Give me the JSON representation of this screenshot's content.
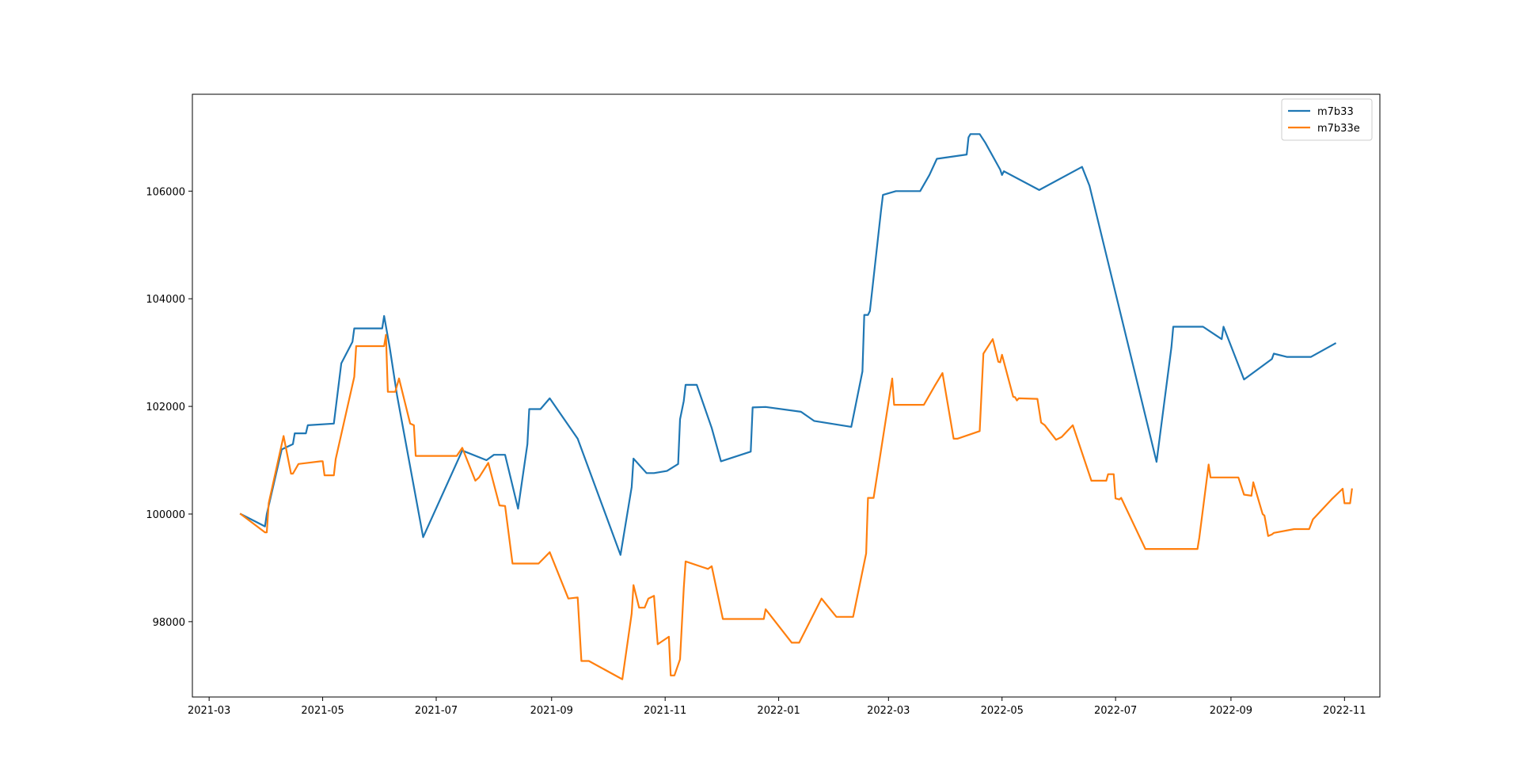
{
  "chart_data": {
    "type": "line",
    "title": "",
    "xlabel": "",
    "ylabel": "",
    "x_ticks": [
      "2021-03",
      "2021-05",
      "2021-07",
      "2021-09",
      "2021-11",
      "2022-01",
      "2022-03",
      "2022-05",
      "2022-07",
      "2022-09",
      "2022-11"
    ],
    "y_ticks": [
      98000,
      100000,
      102000,
      104000,
      106000
    ],
    "xlim": [
      "2021-02-20",
      "2022-11-20"
    ],
    "ylim": [
      96600,
      107800
    ],
    "grid": false,
    "legend_position": "top-right",
    "series": [
      {
        "name": "m7b33",
        "color": "#1f77b4",
        "points": [
          [
            "2021-03-18",
            100000
          ],
          [
            "2021-03-31",
            99770
          ],
          [
            "2021-04-01",
            100000
          ],
          [
            "2021-04-09",
            101200
          ],
          [
            "2021-04-15",
            101300
          ],
          [
            "2021-04-16",
            101500
          ],
          [
            "2021-04-22",
            101500
          ],
          [
            "2021-04-23",
            101650
          ],
          [
            "2021-05-07",
            101680
          ],
          [
            "2021-05-11",
            102800
          ],
          [
            "2021-05-17",
            103200
          ],
          [
            "2021-05-18",
            103450
          ],
          [
            "2021-06-02",
            103450
          ],
          [
            "2021-06-03",
            103680
          ],
          [
            "2021-06-06",
            103100
          ],
          [
            "2021-06-10",
            102200
          ],
          [
            "2021-06-24",
            99570
          ],
          [
            "2021-07-15",
            101180
          ],
          [
            "2021-07-28",
            101000
          ],
          [
            "2021-08-01",
            101100
          ],
          [
            "2021-08-07",
            101100
          ],
          [
            "2021-08-14",
            100100
          ],
          [
            "2021-08-19",
            101300
          ],
          [
            "2021-08-20",
            101950
          ],
          [
            "2021-08-26",
            101950
          ],
          [
            "2021-08-31",
            102150
          ],
          [
            "2021-09-15",
            101400
          ],
          [
            "2021-10-08",
            99240
          ],
          [
            "2021-10-14",
            100500
          ],
          [
            "2021-10-15",
            101030
          ],
          [
            "2021-10-22",
            100760
          ],
          [
            "2021-10-26",
            100760
          ],
          [
            "2021-11-02",
            100800
          ],
          [
            "2021-11-08",
            100930
          ],
          [
            "2021-11-09",
            101760
          ],
          [
            "2021-11-11",
            102100
          ],
          [
            "2021-11-12",
            102400
          ],
          [
            "2021-11-18",
            102400
          ],
          [
            "2021-11-26",
            101600
          ],
          [
            "2021-12-01",
            100980
          ],
          [
            "2021-12-17",
            101160
          ],
          [
            "2021-12-18",
            101980
          ],
          [
            "2021-12-25",
            101990
          ],
          [
            "2022-01-13",
            101900
          ],
          [
            "2022-01-20",
            101730
          ],
          [
            "2022-02-09",
            101620
          ],
          [
            "2022-02-15",
            102650
          ],
          [
            "2022-02-16",
            103700
          ],
          [
            "2022-02-18",
            103700
          ],
          [
            "2022-02-19",
            103770
          ],
          [
            "2022-02-25",
            105640
          ],
          [
            "2022-02-26",
            105930
          ],
          [
            "2022-03-05",
            106000
          ],
          [
            "2022-03-18",
            106000
          ],
          [
            "2022-03-23",
            106300
          ],
          [
            "2022-03-27",
            106600
          ],
          [
            "2022-04-12",
            106680
          ],
          [
            "2022-04-13",
            107000
          ],
          [
            "2022-04-14",
            107060
          ],
          [
            "2022-04-19",
            107060
          ],
          [
            "2022-04-22",
            106900
          ],
          [
            "2022-04-30",
            106400
          ],
          [
            "2022-05-01",
            106300
          ],
          [
            "2022-05-02",
            106370
          ],
          [
            "2022-05-21",
            106020
          ],
          [
            "2022-06-13",
            106450
          ],
          [
            "2022-06-17",
            106100
          ],
          [
            "2022-07-23",
            100970
          ],
          [
            "2022-07-31",
            103100
          ],
          [
            "2022-08-01",
            103480
          ],
          [
            "2022-08-17",
            103480
          ],
          [
            "2022-08-27",
            103250
          ],
          [
            "2022-08-28",
            103480
          ],
          [
            "2022-09-08",
            102500
          ],
          [
            "2022-09-23",
            102880
          ],
          [
            "2022-09-24",
            102980
          ],
          [
            "2022-10-01",
            102920
          ],
          [
            "2022-10-14",
            102920
          ],
          [
            "2022-10-27",
            103170
          ]
        ]
      },
      {
        "name": "m7b33e",
        "color": "#ff7f0e",
        "points": [
          [
            "2021-03-18",
            100000
          ],
          [
            "2021-03-31",
            99660
          ],
          [
            "2021-04-01",
            99660
          ],
          [
            "2021-04-02",
            100200
          ],
          [
            "2021-04-10",
            101450
          ],
          [
            "2021-04-14",
            100750
          ],
          [
            "2021-04-15",
            100750
          ],
          [
            "2021-04-18",
            100930
          ],
          [
            "2021-04-30",
            100980
          ],
          [
            "2021-05-01",
            100980
          ],
          [
            "2021-05-02",
            100720
          ],
          [
            "2021-05-07",
            100720
          ],
          [
            "2021-05-08",
            101020
          ],
          [
            "2021-05-18",
            102550
          ],
          [
            "2021-05-19",
            103120
          ],
          [
            "2021-06-03",
            103120
          ],
          [
            "2021-06-04",
            103330
          ],
          [
            "2021-06-05",
            102270
          ],
          [
            "2021-06-09",
            102270
          ],
          [
            "2021-06-11",
            102520
          ],
          [
            "2021-06-17",
            101680
          ],
          [
            "2021-06-19",
            101650
          ],
          [
            "2021-06-20",
            101080
          ],
          [
            "2021-07-12",
            101080
          ],
          [
            "2021-07-15",
            101230
          ],
          [
            "2021-07-22",
            100620
          ],
          [
            "2021-07-24",
            100680
          ],
          [
            "2021-07-29",
            100950
          ],
          [
            "2021-08-04",
            100160
          ],
          [
            "2021-08-07",
            100150
          ],
          [
            "2021-08-11",
            99080
          ],
          [
            "2021-08-25",
            99080
          ],
          [
            "2021-08-31",
            99290
          ],
          [
            "2021-09-10",
            98430
          ],
          [
            "2021-09-15",
            98450
          ],
          [
            "2021-09-17",
            97270
          ],
          [
            "2021-09-21",
            97270
          ],
          [
            "2021-10-09",
            96930
          ],
          [
            "2021-10-14",
            98150
          ],
          [
            "2021-10-15",
            98680
          ],
          [
            "2021-10-18",
            98260
          ],
          [
            "2021-10-21",
            98260
          ],
          [
            "2021-10-23",
            98430
          ],
          [
            "2021-10-26",
            98480
          ],
          [
            "2021-10-28",
            97580
          ],
          [
            "2021-11-03",
            97720
          ],
          [
            "2021-11-04",
            97000
          ],
          [
            "2021-11-06",
            97000
          ],
          [
            "2021-11-09",
            97300
          ],
          [
            "2021-11-11",
            98620
          ],
          [
            "2021-11-12",
            99120
          ],
          [
            "2021-11-24",
            98980
          ],
          [
            "2021-11-26",
            99030
          ],
          [
            "2021-12-02",
            98050
          ],
          [
            "2021-12-24",
            98050
          ],
          [
            "2021-12-25",
            98230
          ],
          [
            "2022-01-08",
            97610
          ],
          [
            "2022-01-12",
            97610
          ],
          [
            "2022-01-24",
            98430
          ],
          [
            "2022-02-01",
            98090
          ],
          [
            "2022-02-10",
            98090
          ],
          [
            "2022-02-17",
            99270
          ],
          [
            "2022-02-18",
            100300
          ],
          [
            "2022-02-21",
            100300
          ],
          [
            "2022-03-03",
            102520
          ],
          [
            "2022-03-04",
            102030
          ],
          [
            "2022-03-20",
            102030
          ],
          [
            "2022-03-26",
            102390
          ],
          [
            "2022-03-30",
            102620
          ],
          [
            "2022-04-05",
            101400
          ],
          [
            "2022-04-07",
            101400
          ],
          [
            "2022-04-19",
            101540
          ],
          [
            "2022-04-21",
            102980
          ],
          [
            "2022-04-26",
            103250
          ],
          [
            "2022-04-29",
            102830
          ],
          [
            "2022-04-30",
            102820
          ],
          [
            "2022-05-01",
            102960
          ],
          [
            "2022-05-07",
            102180
          ],
          [
            "2022-05-08",
            102170
          ],
          [
            "2022-05-09",
            102110
          ],
          [
            "2022-05-10",
            102150
          ],
          [
            "2022-05-20",
            102140
          ],
          [
            "2022-05-22",
            101700
          ],
          [
            "2022-05-24",
            101650
          ],
          [
            "2022-05-30",
            101380
          ],
          [
            "2022-06-02",
            101430
          ],
          [
            "2022-06-08",
            101650
          ],
          [
            "2022-06-18",
            100620
          ],
          [
            "2022-06-26",
            100620
          ],
          [
            "2022-06-27",
            100740
          ],
          [
            "2022-06-30",
            100740
          ],
          [
            "2022-07-01",
            100290
          ],
          [
            "2022-07-03",
            100270
          ],
          [
            "2022-07-04",
            100300
          ],
          [
            "2022-07-17",
            99350
          ],
          [
            "2022-08-14",
            99350
          ],
          [
            "2022-08-15",
            99560
          ],
          [
            "2022-08-20",
            100920
          ],
          [
            "2022-08-21",
            100680
          ],
          [
            "2022-09-01",
            100680
          ],
          [
            "2022-09-05",
            100680
          ],
          [
            "2022-09-08",
            100360
          ],
          [
            "2022-09-12",
            100340
          ],
          [
            "2022-09-13",
            100590
          ],
          [
            "2022-09-18",
            100000
          ],
          [
            "2022-09-19",
            99970
          ],
          [
            "2022-09-21",
            99590
          ],
          [
            "2022-09-23",
            99620
          ],
          [
            "2022-09-24",
            99650
          ],
          [
            "2022-10-05",
            99720
          ],
          [
            "2022-10-13",
            99720
          ],
          [
            "2022-10-15",
            99900
          ],
          [
            "2022-10-25",
            100270
          ],
          [
            "2022-10-31",
            100470
          ],
          [
            "2022-11-01",
            100200
          ],
          [
            "2022-11-04",
            100200
          ],
          [
            "2022-11-05",
            100460
          ]
        ]
      }
    ]
  }
}
